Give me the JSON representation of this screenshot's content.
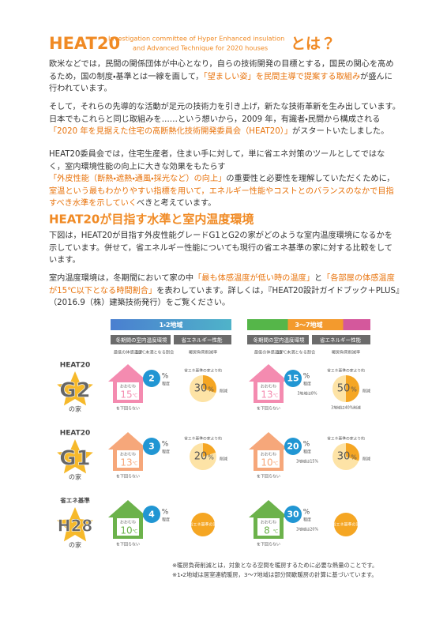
{
  "header": {
    "title": "HEAT20",
    "subtitle_lines": [
      "Investigation committee of Hyper Enhanced insulation",
      "and Advanced Technique for 2020 houses"
    ],
    "suffix": "とは？"
  },
  "paragraphs": [
    [
      {
        "text": "欧米などでは，民間の関係団体が中心となり，自らの技術開発の目標とする，国民の関心を高めるため，国の制度・基準とは一線を画して，",
        "highlight": false
      },
      {
        "text": "「望ましい姿」を民間主導で提案する取組み",
        "highlight": true
      },
      {
        "text": "が盛んに行われています。",
        "highlight": false
      }
    ],
    [
      {
        "text": "そして，それらの先導的な活動が足元の技術力を引き上げ，新たな技術革新を生み出しています。日本でもこれらと同じ取組みを……という想いから，2009 年，有識者・民間から構成される",
        "highlight": false
      },
      {
        "text": "「2020 年を見据えた住宅の高断熱化技術開発委員会（HEAT20）」",
        "highlight": true
      },
      {
        "text": "がスタートいたしました。",
        "highlight": false
      }
    ],
    [
      {
        "text": "HEAT20委員会では，住宅生産者，住まい手に対して，単に省エネ対策のツールとしてではなく，室内環境性能の向上に大きな効果をもたらす",
        "highlight": false
      },
      {
        "text": "「外皮性能（断熱・遮熱・通風・採光など）の向上」",
        "highlight": true
      },
      {
        "text": "の重要性と必要性を理解していただくために，",
        "highlight": false
      },
      {
        "text": "室温という最もわかりやすい指標を用いて，エネルギー性能やコストとのバランスのなかで目指すべき水準を示していく",
        "highlight": true
      },
      {
        "text": "べきと考えています。",
        "highlight": false
      }
    ],
    [
      {
        "text": "下図は，HEAT20が目指す外皮性能グレードG1とG2の家がどのような室内温度環境になるかを示しています。併せて，省エネルギー性能についても現行の省エネ基準の家に対する比較をしています。",
        "highlight": false
      }
    ],
    [
      {
        "text": "室内温度環境は，冬期間において家の中",
        "highlight": false
      },
      {
        "text": "「最も体感温度が低い時の温度」",
        "highlight": true
      },
      {
        "text": "と",
        "highlight": false
      },
      {
        "text": "「各部屋の体感温度が15℃以下となる時間割合」",
        "highlight": true
      },
      {
        "text": "を表わしています。詳しくは，『HEAT20設計ガイドブック＋PLUS』（2016.9（株）建築技術発行）をご覧ください。",
        "highlight": false
      }
    ]
  ],
  "section_heading": "HEAT20が目指す水準と室内温度環境",
  "infographic": {
    "regions": [
      {
        "label": "1・2地域",
        "temp_header": "冬期間の室内温度環境",
        "energy_header": "省エネルギー性能",
        "column_labels": [
          "最低の体感温度",
          "15℃未満となる割合",
          "暖房負荷削減率"
        ]
      },
      {
        "label": "3～7地域",
        "temp_header": "冬期間の室内温度環境",
        "energy_header": "省エネルギー性能",
        "column_labels": [
          "最低の体感温度",
          "15℃未満となる割合",
          "暖房負荷削減率"
        ]
      }
    ],
    "approx_label": "おおむね",
    "below_label": "を下回らない",
    "degree_unit": "℃",
    "percent_unit": "%",
    "extent_label": "程度",
    "saving_prefix": "省エネ基準の家より約",
    "saving_suffix": "削減",
    "rows": [
      {
        "prefix": "HEAT20",
        "grade": "G2",
        "suffix": "の家",
        "color": "#f48bb0",
        "cells": [
          {
            "temp": 15,
            "share": 2,
            "saving": 30
          },
          {
            "temp": 13,
            "share": 15,
            "share_note": "3地域は8%",
            "saving": 50,
            "saving_note": "3地域は40%削減"
          }
        ]
      },
      {
        "prefix": "HEAT20",
        "grade": "G1",
        "suffix": "の家",
        "color": "#f6a77a",
        "cells": [
          {
            "temp": 13,
            "share": 3,
            "saving": 20
          },
          {
            "temp": 10,
            "share": 20,
            "share_note": "3地域は15%",
            "saving": 30
          }
        ]
      },
      {
        "prefix": "省エネ基準",
        "grade": "H28",
        "suffix": "の家",
        "color": "#6cb24b",
        "cells": [
          {
            "temp": 10,
            "share": 4,
            "baseline": "省エネ基準の家"
          },
          {
            "temp": 8,
            "share": 30,
            "share_note": "3地域は20%",
            "baseline": "省エネ基準の家"
          }
        ]
      }
    ],
    "notes": [
      "※暖房負荷削減とは，対象となる空間を暖房するために必要な熱量のことです。",
      "※1・2地域は居室連続暖房，3～7地域は部分間歇暖房の計算に基づいています。"
    ]
  }
}
